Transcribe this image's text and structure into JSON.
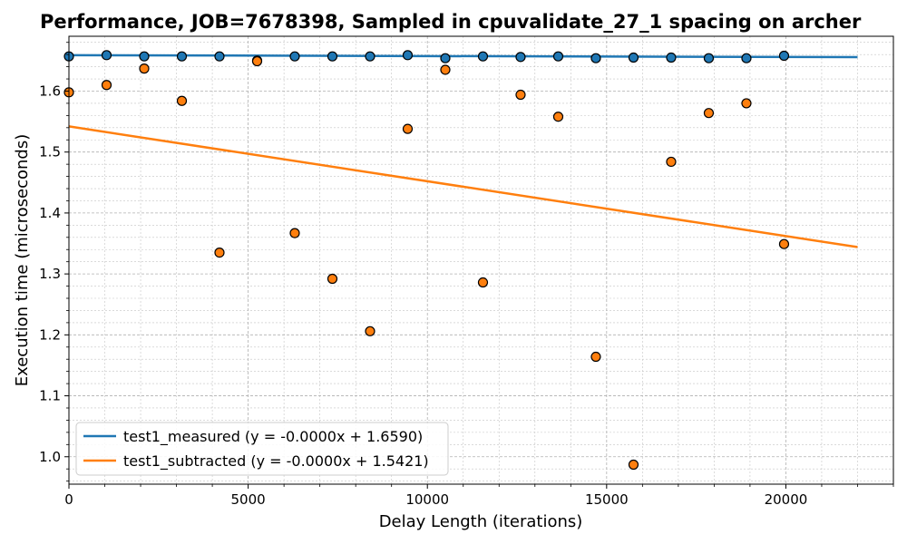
{
  "chart_data": {
    "type": "scatter",
    "title": "Performance, JOB=7678398, Sampled in cpuvalidate_27_1 spacing on archer",
    "xlabel": "Delay Length (iterations)",
    "ylabel": "Execution time (microseconds)",
    "xlim": [
      0,
      23000
    ],
    "ylim": [
      0.955,
      1.69
    ],
    "x_ticks": [
      0,
      5000,
      10000,
      15000,
      20000
    ],
    "x_tick_labels": [
      "0",
      "5000",
      "10000",
      "15000",
      "20000"
    ],
    "y_ticks": [
      1.0,
      1.1,
      1.2,
      1.3,
      1.4,
      1.5,
      1.6
    ],
    "y_tick_labels": [
      "1.0",
      "1.1",
      "1.2",
      "1.3",
      "1.4",
      "1.5",
      "1.6"
    ],
    "grid": true,
    "legend_position": "lower-left",
    "series": [
      {
        "name": "test1_measured",
        "color": "#1f77b4",
        "x": [
          0,
          1050,
          2100,
          3150,
          4200,
          5250,
          6300,
          7350,
          8400,
          9450,
          10500,
          11550,
          12600,
          13650,
          14700,
          15750,
          16800,
          17850,
          18900,
          19950
        ],
        "y": [
          1.657,
          1.659,
          1.657,
          1.657,
          1.657,
          1.65,
          1.657,
          1.657,
          1.657,
          1.659,
          1.654,
          1.657,
          1.656,
          1.657,
          1.654,
          1.655,
          1.655,
          1.654,
          1.654,
          1.658
        ]
      },
      {
        "name": "test1_subtracted",
        "color": "#ff7f0e",
        "x": [
          0,
          1050,
          2100,
          3150,
          4200,
          5250,
          6300,
          7350,
          8400,
          9450,
          10500,
          11550,
          12600,
          13650,
          14700,
          15750,
          16800,
          17850,
          18900,
          19950
        ],
        "y": [
          1.598,
          1.61,
          1.637,
          1.584,
          1.335,
          1.649,
          1.367,
          1.292,
          1.206,
          1.538,
          1.635,
          1.286,
          1.594,
          1.558,
          1.164,
          0.987,
          1.484,
          1.564,
          1.58,
          1.349
        ]
      }
    ],
    "fits": [
      {
        "label": "test1_measured (y = -0.0000x + 1.6590)",
        "color": "#1f77b4",
        "slope": -1.5e-07,
        "intercept": 1.659,
        "x_range": [
          0,
          22000
        ]
      },
      {
        "label": "test1_subtracted (y = -0.0000x + 1.5421)",
        "color": "#ff7f0e",
        "slope": -9e-06,
        "intercept": 1.5421,
        "x_range": [
          0,
          22000
        ]
      }
    ]
  }
}
